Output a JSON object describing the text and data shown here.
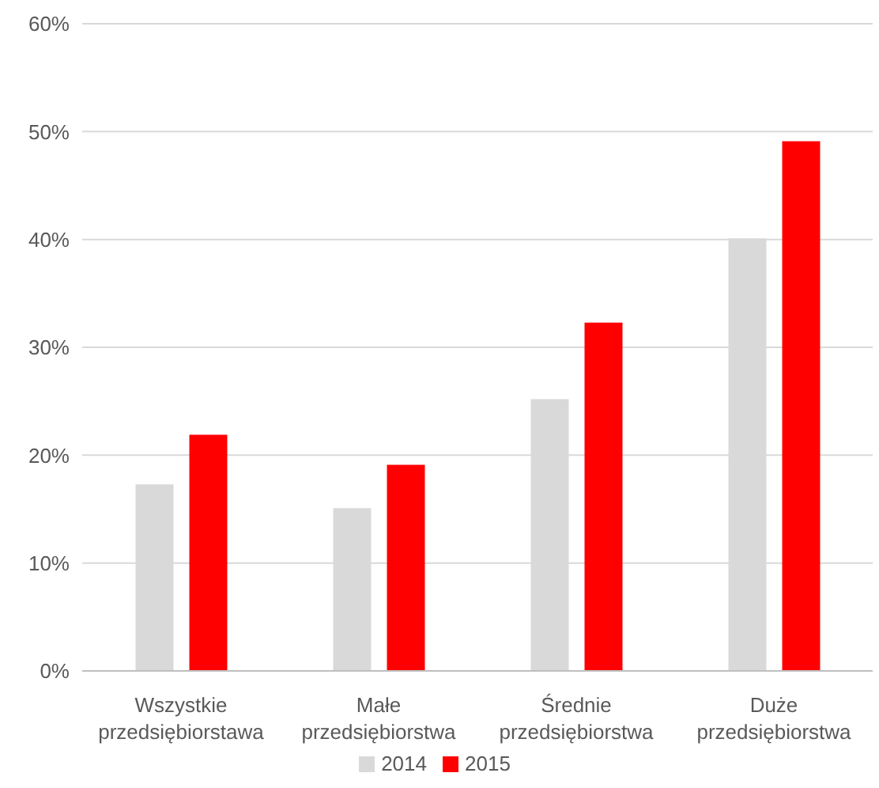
{
  "chart_data": {
    "type": "bar",
    "categories": [
      "Wszystkie\nprzedsiębiorstawa",
      "Małe\nprzedsiębiorstwa",
      "Średnie\nprzedsiębiorstwa",
      "Duże\nprzedsiębiorstwa"
    ],
    "series": [
      {
        "name": "2014",
        "color": "#d9d9d9",
        "values": [
          17.3,
          15.1,
          25.2,
          40.1
        ]
      },
      {
        "name": "2015",
        "color": "#ff0000",
        "values": [
          21.9,
          19.1,
          32.3,
          49.1
        ]
      }
    ],
    "ylim": [
      0,
      60
    ],
    "yticks": [
      {
        "value": 0,
        "label": "0%"
      },
      {
        "value": 10,
        "label": "10%"
      },
      {
        "value": 20,
        "label": "20%"
      },
      {
        "value": 30,
        "label": "30%"
      },
      {
        "value": 40,
        "label": "40%"
      },
      {
        "value": 50,
        "label": "50%"
      },
      {
        "value": 60,
        "label": "60%"
      }
    ],
    "grid": "y",
    "legend": "bottom"
  }
}
